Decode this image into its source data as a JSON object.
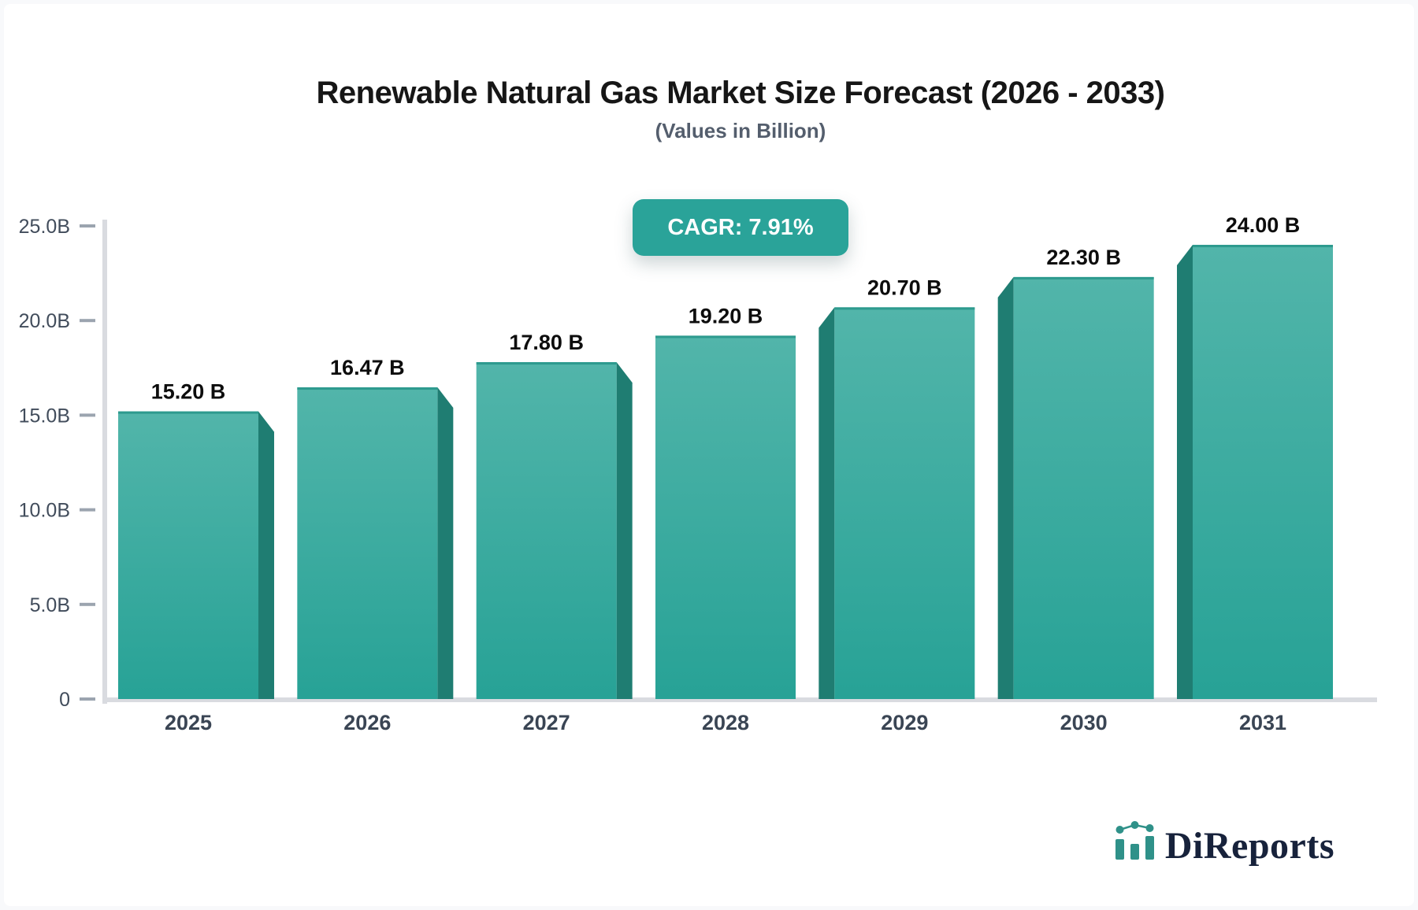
{
  "header": {
    "title": "Renewable Natural Gas Market Size Forecast (2026 - 2033)",
    "subtitle": "(Values in Billion)"
  },
  "cagr_badge": {
    "label": "CAGR: 7.91%"
  },
  "chart_data": {
    "type": "bar",
    "title": "Renewable Natural Gas Market Size Forecast (2026 - 2033)",
    "subtitle": "(Values in Billion)",
    "cagr_label": "CAGR: 7.91%",
    "unit": "Billion",
    "categories": [
      "2025",
      "2026",
      "2027",
      "2028",
      "2029",
      "2030",
      "2031"
    ],
    "values": [
      15.2,
      16.47,
      17.8,
      19.2,
      20.7,
      22.3,
      24.0
    ],
    "value_labels": [
      "15.20 B",
      "16.47 B",
      "17.80 B",
      "19.20 B",
      "20.70 B",
      "22.30 B",
      "24.00 B"
    ],
    "ylim": [
      0,
      25
    ],
    "y_ticks": [
      {
        "value": 0,
        "label": "0"
      },
      {
        "value": 5,
        "label": "5.0B"
      },
      {
        "value": 10,
        "label": "10.0B"
      },
      {
        "value": 15,
        "label": "15.0B"
      },
      {
        "value": 20,
        "label": "20.0B"
      },
      {
        "value": 25,
        "label": "25.0B"
      }
    ],
    "grid": false,
    "legend": false,
    "bar_style": "3d-extruded",
    "extrusion_direction": "away-from-center"
  },
  "logo": {
    "text": "DiReports",
    "icon": "mini-bar-line-chart-icon"
  },
  "colors": {
    "page_bg": "#f8f9fb",
    "card_bg": "#ffffff",
    "badge_bg": "#2aa399",
    "badge_text": "#ffffff",
    "bar_top": "#52b5aa",
    "bar_bottom": "#27a296",
    "bar_side": "#1f7d72",
    "bar_edge": "#2d9a8e",
    "axis": "#d9dbe0",
    "tick": "#9ba4af",
    "tick_label": "#414c5b",
    "category_label": "#3a4554",
    "value_label": "#0d0d0d",
    "title": "#161616",
    "subtitle": "#545e6d",
    "logo_text": "#17223b",
    "logo_icon": "#2f9189"
  }
}
